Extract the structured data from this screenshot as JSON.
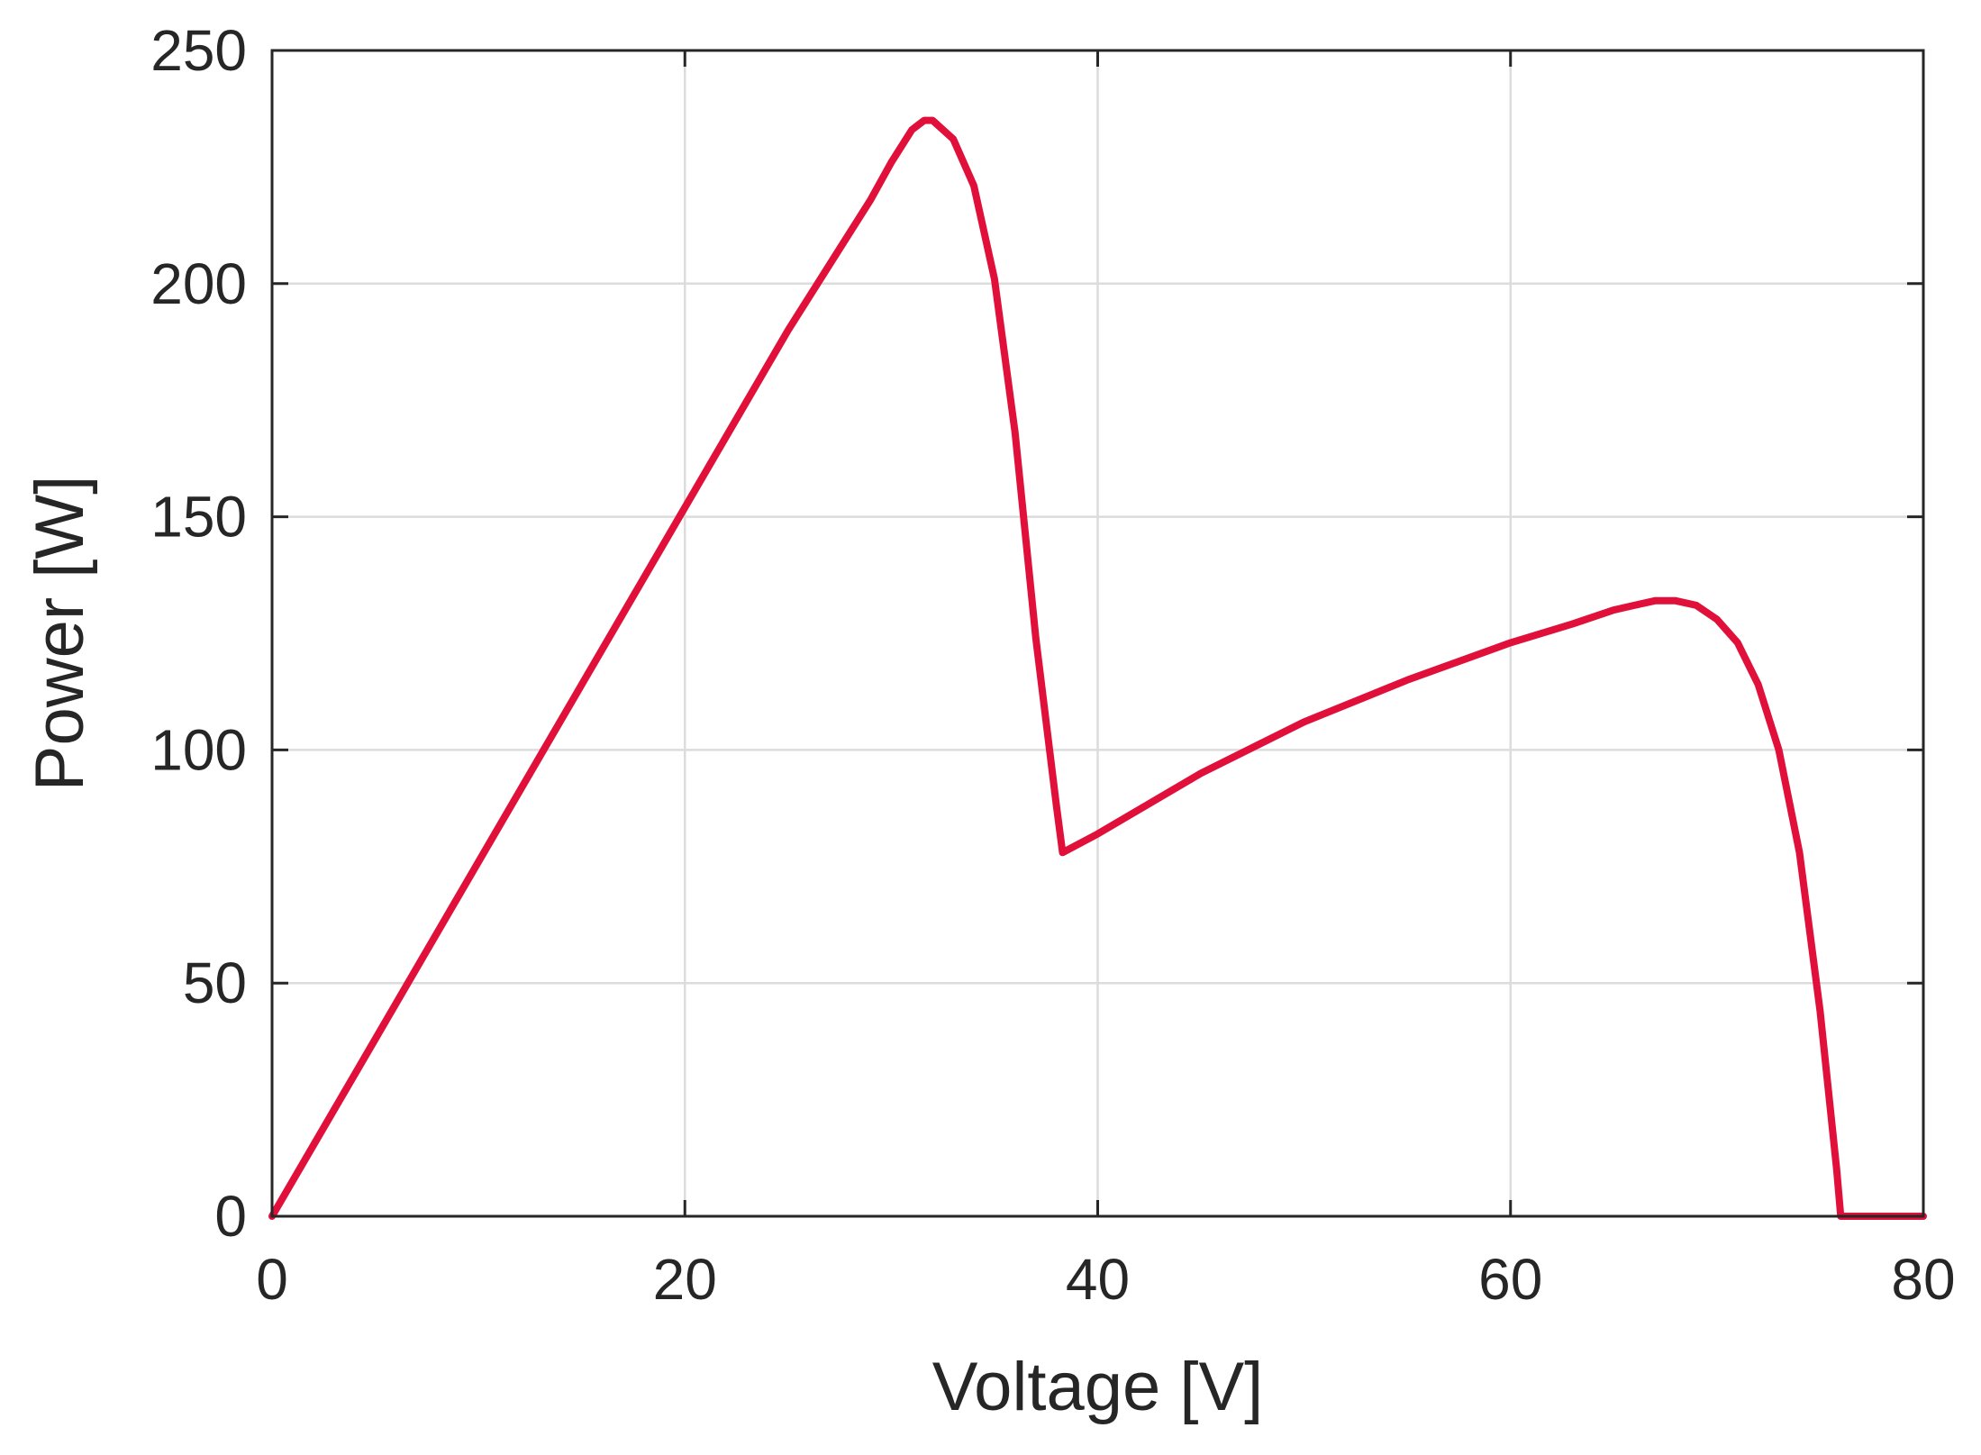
{
  "chart_data": {
    "type": "line",
    "title": "",
    "xlabel": "Voltage [V]",
    "ylabel": "Power [W]",
    "xlim": [
      0,
      80
    ],
    "ylim": [
      0,
      250
    ],
    "xticks": [
      0,
      20,
      40,
      60,
      80
    ],
    "yticks": [
      0,
      50,
      100,
      150,
      200,
      250
    ],
    "grid": true,
    "legend": "none",
    "colors": {
      "series": "#e0103a",
      "axis": "#262626",
      "grid": "#dcdcdc"
    },
    "series": [
      {
        "points": [
          [
            0,
            0
          ],
          [
            5,
            38
          ],
          [
            10,
            76
          ],
          [
            15,
            114
          ],
          [
            20,
            152
          ],
          [
            25,
            190
          ],
          [
            27,
            204
          ],
          [
            29,
            218
          ],
          [
            30,
            226
          ],
          [
            31,
            233
          ],
          [
            31.6,
            235
          ],
          [
            32,
            235
          ],
          [
            33,
            231
          ],
          [
            34,
            221
          ],
          [
            35,
            201
          ],
          [
            36,
            168
          ],
          [
            37,
            124
          ],
          [
            38,
            88
          ],
          [
            38.3,
            78
          ],
          [
            40,
            82
          ],
          [
            45,
            95
          ],
          [
            50,
            106
          ],
          [
            55,
            115
          ],
          [
            60,
            123
          ],
          [
            63,
            127
          ],
          [
            65,
            130
          ],
          [
            66,
            131
          ],
          [
            67,
            132
          ],
          [
            68,
            132
          ],
          [
            69,
            131
          ],
          [
            70,
            128
          ],
          [
            71,
            123
          ],
          [
            72,
            114
          ],
          [
            73,
            100
          ],
          [
            74,
            78
          ],
          [
            75,
            44
          ],
          [
            75.8,
            10
          ],
          [
            76,
            0
          ],
          [
            78,
            0
          ],
          [
            80,
            0
          ]
        ]
      }
    ]
  }
}
